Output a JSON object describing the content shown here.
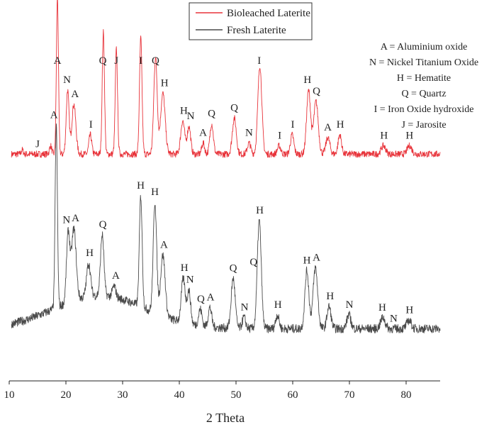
{
  "chart_data": {
    "type": "line",
    "xlabel": "2 Theta",
    "xlim": [
      10,
      86
    ],
    "xticks": [
      10,
      20,
      30,
      40,
      50,
      60,
      70,
      80
    ],
    "grid": false,
    "legend": {
      "placement": "top-center"
    },
    "series": [
      {
        "name": "Bioleached Laterite",
        "color": "#e8333a",
        "baseline": 13,
        "peaks": [
          {
            "x": 12.3,
            "h": 1.5,
            "w": 0.18
          },
          {
            "x": 17.3,
            "h": 3,
            "w": 0.2
          },
          {
            "x": 18.5,
            "h": 57,
            "w": 0.18
          },
          {
            "x": 20.3,
            "h": 23,
            "w": 0.25
          },
          {
            "x": 21.4,
            "h": 18,
            "w": 0.35
          },
          {
            "x": 24.3,
            "h": 7,
            "w": 0.25
          },
          {
            "x": 26.6,
            "h": 44,
            "w": 0.2
          },
          {
            "x": 28.9,
            "h": 38,
            "w": 0.2
          },
          {
            "x": 33.2,
            "h": 42,
            "w": 0.22
          },
          {
            "x": 35.8,
            "h": 35,
            "w": 0.3
          },
          {
            "x": 37.1,
            "h": 22,
            "w": 0.4
          },
          {
            "x": 40.6,
            "h": 12,
            "w": 0.35
          },
          {
            "x": 41.7,
            "h": 10,
            "w": 0.3
          },
          {
            "x": 44.2,
            "h": 4,
            "w": 0.25
          },
          {
            "x": 45.7,
            "h": 11,
            "w": 0.3
          },
          {
            "x": 49.7,
            "h": 13,
            "w": 0.35
          },
          {
            "x": 52.3,
            "h": 4,
            "w": 0.3
          },
          {
            "x": 54.2,
            "h": 32,
            "w": 0.35
          },
          {
            "x": 57.6,
            "h": 3,
            "w": 0.3
          },
          {
            "x": 59.9,
            "h": 7,
            "w": 0.3
          },
          {
            "x": 62.8,
            "h": 23,
            "w": 0.35
          },
          {
            "x": 64.1,
            "h": 19,
            "w": 0.4
          },
          {
            "x": 66.2,
            "h": 6,
            "w": 0.35
          },
          {
            "x": 68.3,
            "h": 7,
            "w": 0.3
          },
          {
            "x": 76.0,
            "h": 3,
            "w": 0.4
          },
          {
            "x": 80.6,
            "h": 3,
            "w": 0.4
          }
        ]
      },
      {
        "name": "Fresh Laterite",
        "color": "#4a4a4a",
        "baseline": 14,
        "hump": {
          "center": 26,
          "height": 12,
          "width": 8
        },
        "peaks": [
          {
            "x": 18.3,
            "h": 66,
            "w": 0.2
          },
          {
            "x": 20.4,
            "h": 25,
            "w": 0.3
          },
          {
            "x": 21.4,
            "h": 26,
            "w": 0.4
          },
          {
            "x": 24.0,
            "h": 12,
            "w": 0.35
          },
          {
            "x": 26.4,
            "h": 22,
            "w": 0.3
          },
          {
            "x": 28.5,
            "h": 4,
            "w": 0.3
          },
          {
            "x": 33.2,
            "h": 40,
            "w": 0.25
          },
          {
            "x": 35.7,
            "h": 40,
            "w": 0.3
          },
          {
            "x": 37.1,
            "h": 22,
            "w": 0.4
          },
          {
            "x": 40.7,
            "h": 16,
            "w": 0.35
          },
          {
            "x": 41.7,
            "h": 12,
            "w": 0.3
          },
          {
            "x": 43.7,
            "h": 6,
            "w": 0.3
          },
          {
            "x": 45.4,
            "h": 7,
            "w": 0.3
          },
          {
            "x": 49.5,
            "h": 18,
            "w": 0.35
          },
          {
            "x": 51.4,
            "h": 4,
            "w": 0.3
          },
          {
            "x": 54.1,
            "h": 39,
            "w": 0.35
          },
          {
            "x": 57.3,
            "h": 5,
            "w": 0.3
          },
          {
            "x": 62.5,
            "h": 21,
            "w": 0.35
          },
          {
            "x": 64.0,
            "h": 22,
            "w": 0.4
          },
          {
            "x": 66.4,
            "h": 8,
            "w": 0.35
          },
          {
            "x": 69.9,
            "h": 5,
            "w": 0.35
          },
          {
            "x": 75.9,
            "h": 4,
            "w": 0.4
          },
          {
            "x": 80.5,
            "h": 3,
            "w": 0.4
          }
        ]
      }
    ],
    "annotations": {
      "bioleached": [
        {
          "x": 15.0,
          "text": "J"
        },
        {
          "x": 18.5,
          "text": "A"
        },
        {
          "x": 20.2,
          "text": "N"
        },
        {
          "x": 21.6,
          "text": "A"
        },
        {
          "x": 24.4,
          "text": "I"
        },
        {
          "x": 26.5,
          "text": "Q"
        },
        {
          "x": 28.9,
          "text": "J"
        },
        {
          "x": 33.2,
          "text": "I"
        },
        {
          "x": 35.8,
          "text": "Q"
        },
        {
          "x": 37.4,
          "text": "H"
        },
        {
          "x": 40.8,
          "text": "H"
        },
        {
          "x": 42.0,
          "text": "N"
        },
        {
          "x": 44.2,
          "text": "A"
        },
        {
          "x": 45.7,
          "text": "Q"
        },
        {
          "x": 49.7,
          "text": "Q"
        },
        {
          "x": 52.3,
          "text": "N"
        },
        {
          "x": 54.1,
          "text": "I"
        },
        {
          "x": 57.7,
          "text": "I"
        },
        {
          "x": 60.0,
          "text": "I"
        },
        {
          "x": 62.6,
          "text": "H"
        },
        {
          "x": 64.2,
          "text": "Q"
        },
        {
          "x": 66.2,
          "text": "A"
        },
        {
          "x": 68.4,
          "text": "H"
        },
        {
          "x": 76.1,
          "text": "H"
        },
        {
          "x": 80.6,
          "text": "H"
        }
      ],
      "fresh": [
        {
          "x": 17.9,
          "text": "A"
        },
        {
          "x": 20.1,
          "text": "N"
        },
        {
          "x": 21.7,
          "text": "A"
        },
        {
          "x": 24.2,
          "text": "H"
        },
        {
          "x": 26.5,
          "text": "Q"
        },
        {
          "x": 28.8,
          "text": "A"
        },
        {
          "x": 33.2,
          "text": "H"
        },
        {
          "x": 35.7,
          "text": "H"
        },
        {
          "x": 37.3,
          "text": "A"
        },
        {
          "x": 40.9,
          "text": "H"
        },
        {
          "x": 41.9,
          "text": "N"
        },
        {
          "x": 43.8,
          "text": "Q"
        },
        {
          "x": 45.5,
          "text": "A"
        },
        {
          "x": 49.5,
          "text": "Q"
        },
        {
          "x": 51.5,
          "text": "N"
        },
        {
          "x": 53.1,
          "text": "Q"
        },
        {
          "x": 54.2,
          "text": "H"
        },
        {
          "x": 57.4,
          "text": "H"
        },
        {
          "x": 62.5,
          "text": "H"
        },
        {
          "x": 64.2,
          "text": "A"
        },
        {
          "x": 66.6,
          "text": "H"
        },
        {
          "x": 70.0,
          "text": "N"
        },
        {
          "x": 75.8,
          "text": "H"
        },
        {
          "x": 77.8,
          "text": "N"
        },
        {
          "x": 80.6,
          "text": "H"
        }
      ]
    },
    "key": [
      "A = Aluminium oxide",
      "N = Nickel Titanium Oxide",
      "H = Hematite",
      "Q = Quartz",
      "I = Iron Oxide hydroxide",
      "J = Jarosite"
    ]
  }
}
